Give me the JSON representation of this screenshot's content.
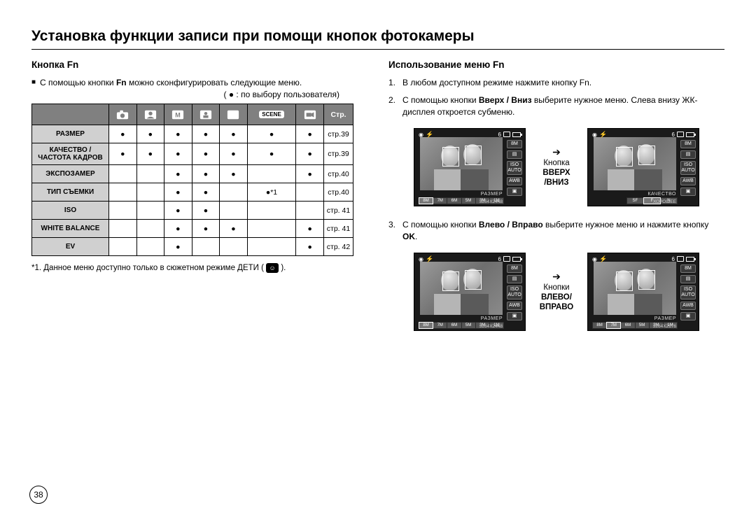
{
  "page": {
    "title": "Установка функции записи при помощи кнопок фотокамеры",
    "number": "38"
  },
  "left": {
    "heading": "Кнопка Fn",
    "intro_pre": "С помощью кнопки ",
    "intro_bold": "Fn",
    "intro_post": " можно сконфигурировать следующие меню.",
    "legend": "( ● : по выбору пользователя)",
    "table": {
      "page_header": "Стр.",
      "mode_icons": [
        "camera",
        "portrait",
        "M",
        "manual-head",
        "night",
        "SCENE",
        "movie"
      ],
      "rows": [
        {
          "label": "РАЗМЕР",
          "dots": [
            "●",
            "●",
            "●",
            "●",
            "●",
            "●",
            "●"
          ],
          "page": "стр.39"
        },
        {
          "label": "КАЧЕСТВО / ЧАСТОТА КАДРОВ",
          "dots": [
            "●",
            "●",
            "●",
            "●",
            "●",
            "●",
            "●"
          ],
          "page": "стр.39"
        },
        {
          "label": "ЭКСПОЗАМЕР",
          "dots": [
            "",
            "",
            "●",
            "●",
            "●",
            "",
            "●"
          ],
          "page": "стр.40"
        },
        {
          "label": "ТИП СЪЕМКИ",
          "dots": [
            "",
            "",
            "●",
            "●",
            "",
            "●*1",
            ""
          ],
          "page": "стр.40"
        },
        {
          "label": "ISO",
          "dots": [
            "",
            "",
            "●",
            "●",
            "",
            "",
            ""
          ],
          "page": "стр. 41"
        },
        {
          "label": "WHITE BALANCE",
          "dots": [
            "",
            "",
            "●",
            "●",
            "●",
            "",
            "●"
          ],
          "page": "стр. 41"
        },
        {
          "label": "EV",
          "dots": [
            "",
            "",
            "●",
            "",
            "",
            "",
            "●"
          ],
          "page": "стр. 42"
        }
      ]
    },
    "footnote_pre": "*1.  Данное меню доступно только в сюжетном режиме ДЕТИ ( ",
    "footnote_post": " )."
  },
  "right": {
    "heading": "Использование меню Fn",
    "steps": [
      {
        "n": "1.",
        "text": "В любом доступном режиме нажмите кнопку Fn."
      },
      {
        "n": "2.",
        "pre": "С помощью кнопки ",
        "b": "Вверх / Вниз",
        "post": " выберите нужное меню.  Слева внизу ЖК-дисплея откроется субменю."
      },
      {
        "n": "3.",
        "pre": "С помощью кнопки ",
        "b": "Влево / Вправо",
        "post": " выберите нужное меню и нажмите кнопку ",
        "b2": "OK",
        "post2": "."
      }
    ],
    "arrow1": {
      "line1": "Кнопка",
      "line2": "ВВЕРХ",
      "line3": "/ВНИЗ"
    },
    "arrow2": {
      "line1": "Кнопки",
      "line2": "ВЛЕВО/",
      "line3": "ВПРАВО"
    },
    "lcd": {
      "top_number": "6",
      "quality_8m": "8M",
      "iso": "ISO",
      "iso_sub": "AUTO",
      "awb": "AWB",
      "label_size": "РАЗМЕР",
      "label_quality": "КАЧЕСТВО",
      "res1": "3264X2448",
      "res2": "3264X2176",
      "quality_good": "ХОРОШЕЕ",
      "thumbs": [
        "8M",
        "7M",
        "6M",
        "5M",
        "3M",
        "1M"
      ],
      "thumbs_q": [
        "SF",
        "F",
        "N"
      ]
    }
  }
}
